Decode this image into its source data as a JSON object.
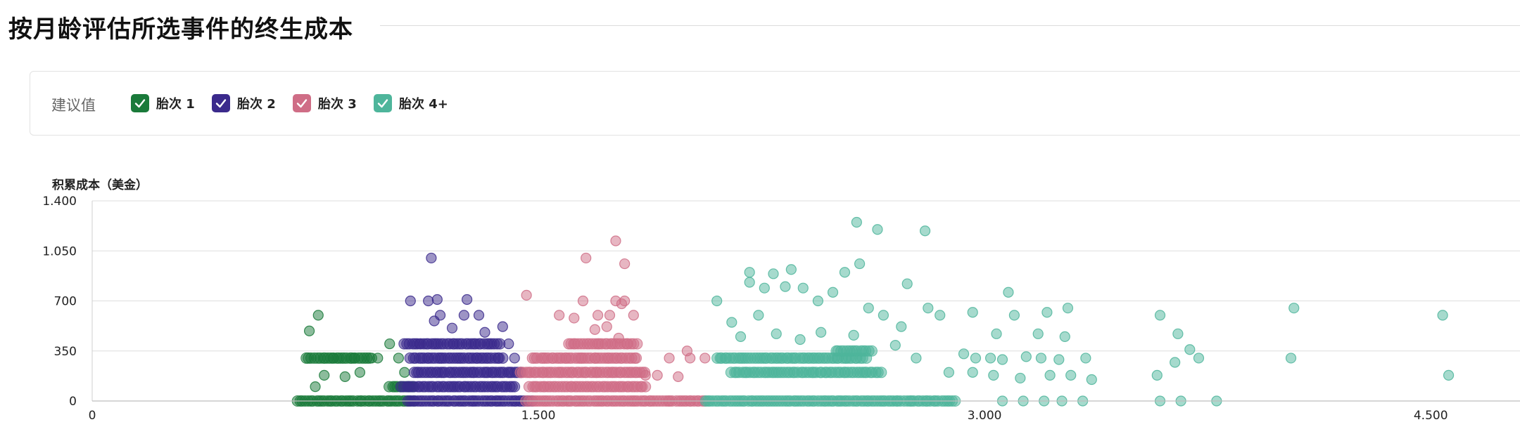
{
  "page": {
    "title": "按月龄评估所选事件的终生成本"
  },
  "legend": {
    "title": "建议值",
    "items": [
      {
        "label": "胎次 1",
        "color": "#1a7a3a",
        "checked": true
      },
      {
        "label": "胎次 2",
        "color": "#3b2a8c",
        "checked": true
      },
      {
        "label": "胎次 3",
        "color": "#cf6d86",
        "checked": true
      },
      {
        "label": "胎次 4+",
        "color": "#4eb59b",
        "checked": true
      }
    ]
  },
  "chart_data": {
    "type": "scatter",
    "title": "",
    "xlabel": "",
    "ylabel": "积累成本（美金）",
    "xlim": [
      0,
      4800
    ],
    "ylim": [
      0,
      1400
    ],
    "x_ticks": [
      0,
      1500,
      3000,
      4500
    ],
    "x_tick_labels": [
      "0",
      "1.500",
      "3.000",
      "4.500"
    ],
    "y_ticks": [
      0,
      350,
      700,
      1050,
      1400
    ],
    "y_tick_labels": [
      "0",
      "350",
      "700",
      "1.050",
      "1.400"
    ],
    "grid": "horizontal",
    "series": [
      {
        "name": "胎次 1",
        "color": "#1a7a3a",
        "bands": [
          {
            "y": 0,
            "x0": 690,
            "x1": 1080
          },
          {
            "y": 100,
            "x0": 1000,
            "x1": 1080
          },
          {
            "y": 300,
            "x0": 720,
            "x1": 930
          }
        ],
        "points": [
          [
            760,
            600
          ],
          [
            730,
            490
          ],
          [
            810,
            300
          ],
          [
            880,
            300
          ],
          [
            960,
            300
          ],
          [
            1030,
            300
          ],
          [
            1050,
            200
          ],
          [
            780,
            180
          ],
          [
            850,
            170
          ],
          [
            750,
            100
          ],
          [
            1000,
            400
          ],
          [
            940,
            300
          ],
          [
            900,
            200
          ]
        ]
      },
      {
        "name": "胎次 2",
        "color": "#3b2a8c",
        "bands": [
          {
            "y": 0,
            "x0": 1060,
            "x1": 1480
          },
          {
            "y": 100,
            "x0": 1040,
            "x1": 1420
          },
          {
            "y": 200,
            "x0": 1080,
            "x1": 1440
          },
          {
            "y": 300,
            "x0": 1070,
            "x1": 1380
          },
          {
            "y": 400,
            "x0": 1050,
            "x1": 1370
          }
        ],
        "points": [
          [
            1140,
            1000
          ],
          [
            1070,
            700
          ],
          [
            1130,
            700
          ],
          [
            1160,
            710
          ],
          [
            1260,
            710
          ],
          [
            1250,
            600
          ],
          [
            1170,
            600
          ],
          [
            1210,
            510
          ],
          [
            1300,
            600
          ],
          [
            1150,
            560
          ],
          [
            1320,
            480
          ],
          [
            1100,
            400
          ],
          [
            1400,
            400
          ],
          [
            1420,
            300
          ],
          [
            1440,
            200
          ],
          [
            1380,
            520
          ]
        ]
      },
      {
        "name": "胎次 3",
        "color": "#cf6d86",
        "bands": [
          {
            "y": 0,
            "x0": 1460,
            "x1": 2060
          },
          {
            "y": 100,
            "x0": 1470,
            "x1": 1860
          },
          {
            "y": 200,
            "x0": 1440,
            "x1": 1860
          },
          {
            "y": 300,
            "x0": 1480,
            "x1": 1830
          },
          {
            "y": 400,
            "x0": 1600,
            "x1": 1830
          }
        ],
        "points": [
          [
            1760,
            1120
          ],
          [
            1660,
            1000
          ],
          [
            1790,
            960
          ],
          [
            1460,
            740
          ],
          [
            1650,
            700
          ],
          [
            1760,
            700
          ],
          [
            1790,
            700
          ],
          [
            1570,
            600
          ],
          [
            1620,
            580
          ],
          [
            1700,
            600
          ],
          [
            1740,
            600
          ],
          [
            1820,
            600
          ],
          [
            1780,
            680
          ],
          [
            1730,
            520
          ],
          [
            1690,
            500
          ],
          [
            1770,
            440
          ],
          [
            2000,
            350
          ],
          [
            1940,
            300
          ],
          [
            2010,
            300
          ],
          [
            2060,
            300
          ],
          [
            1860,
            180
          ],
          [
            1900,
            180
          ],
          [
            1970,
            170
          ]
        ]
      },
      {
        "name": "胎次 4+",
        "color": "#4eb59b",
        "bands": [
          {
            "y": 0,
            "x0": 2060,
            "x1": 2900
          },
          {
            "y": 200,
            "x0": 2150,
            "x1": 2650
          },
          {
            "y": 300,
            "x0": 2100,
            "x1": 2600
          },
          {
            "y": 350,
            "x0": 2500,
            "x1": 2620
          }
        ],
        "points": [
          [
            2570,
            1250
          ],
          [
            2640,
            1200
          ],
          [
            2800,
            1190
          ],
          [
            2580,
            960
          ],
          [
            2530,
            900
          ],
          [
            2350,
            920
          ],
          [
            2290,
            890
          ],
          [
            2210,
            900
          ],
          [
            2210,
            830
          ],
          [
            2260,
            790
          ],
          [
            2330,
            800
          ],
          [
            2390,
            790
          ],
          [
            2490,
            760
          ],
          [
            2100,
            700
          ],
          [
            2440,
            700
          ],
          [
            2740,
            820
          ],
          [
            2810,
            650
          ],
          [
            2850,
            600
          ],
          [
            2960,
            620
          ],
          [
            3080,
            760
          ],
          [
            3100,
            600
          ],
          [
            3210,
            620
          ],
          [
            3280,
            650
          ],
          [
            3040,
            470
          ],
          [
            3180,
            470
          ],
          [
            3270,
            450
          ],
          [
            2930,
            330
          ],
          [
            2970,
            300
          ],
          [
            3020,
            300
          ],
          [
            3060,
            290
          ],
          [
            3140,
            310
          ],
          [
            3190,
            300
          ],
          [
            3250,
            290
          ],
          [
            3340,
            300
          ],
          [
            3220,
            180
          ],
          [
            3290,
            180
          ],
          [
            3360,
            150
          ],
          [
            3030,
            180
          ],
          [
            3120,
            160
          ],
          [
            3590,
            600
          ],
          [
            3650,
            470
          ],
          [
            3690,
            360
          ],
          [
            3720,
            300
          ],
          [
            3580,
            180
          ],
          [
            3640,
            270
          ],
          [
            4040,
            650
          ],
          [
            4030,
            300
          ],
          [
            4540,
            600
          ],
          [
            4560,
            180
          ],
          [
            3590,
            0
          ],
          [
            3660,
            0
          ],
          [
            3780,
            0
          ],
          [
            3060,
            0
          ],
          [
            3130,
            0
          ],
          [
            3200,
            0
          ],
          [
            3260,
            0
          ],
          [
            3330,
            0
          ],
          [
            2880,
            200
          ],
          [
            2960,
            200
          ],
          [
            2770,
            300
          ],
          [
            2720,
            520
          ],
          [
            2660,
            600
          ],
          [
            2610,
            650
          ],
          [
            2560,
            460
          ],
          [
            2450,
            480
          ],
          [
            2380,
            430
          ],
          [
            2300,
            470
          ],
          [
            2180,
            450
          ],
          [
            2150,
            550
          ],
          [
            2240,
            600
          ],
          [
            2700,
            390
          ]
        ]
      }
    ]
  }
}
